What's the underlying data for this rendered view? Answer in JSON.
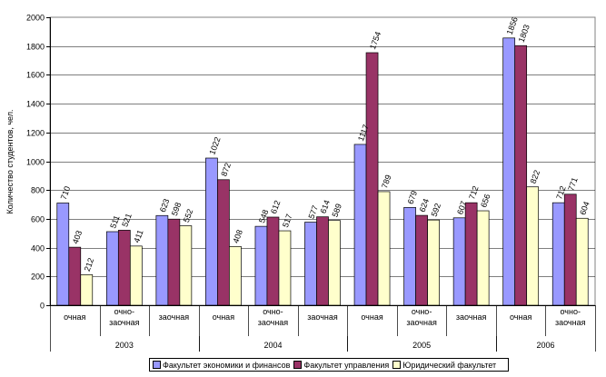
{
  "chart_data": {
    "type": "bar",
    "ylabel": "Количество студентов, чел.",
    "ylim": [
      0,
      2000
    ],
    "yticks": [
      "0",
      "200",
      "400",
      "600",
      "800",
      "1000",
      "1200",
      "1400",
      "1600",
      "1800",
      "2000"
    ],
    "grid": true,
    "legend_position": "bottom",
    "categories": [
      {
        "label": "очная",
        "year": "2003"
      },
      {
        "label": "очно-заочная",
        "year": "2003"
      },
      {
        "label": "заочная",
        "year": "2003"
      },
      {
        "label": "очная",
        "year": "2004"
      },
      {
        "label": "очно-заочная",
        "year": "2004"
      },
      {
        "label": "заочная",
        "year": "2004"
      },
      {
        "label": "очная",
        "year": "2005"
      },
      {
        "label": "очно-заочная",
        "year": "2005"
      },
      {
        "label": "заочная",
        "year": "2005"
      },
      {
        "label": "очная",
        "year": "2006"
      },
      {
        "label": "очно-заочная",
        "year": "2006"
      }
    ],
    "years": [
      "2003",
      "2004",
      "2005",
      "2006"
    ],
    "series": [
      {
        "name": "Факультет экономики и финансов",
        "color": "#9999ff",
        "values": [
          710,
          511,
          623,
          1022,
          548,
          577,
          1117,
          679,
          607,
          1856,
          712
        ]
      },
      {
        "name": "Факультет управления",
        "color": "#993366",
        "values": [
          403,
          521,
          598,
          872,
          612,
          614,
          1754,
          624,
          712,
          1803,
          771
        ]
      },
      {
        "name": "Юридический факультет",
        "color": "#ffffcc",
        "values": [
          212,
          411,
          552,
          408,
          517,
          589,
          789,
          592,
          656,
          822,
          604
        ]
      }
    ]
  }
}
